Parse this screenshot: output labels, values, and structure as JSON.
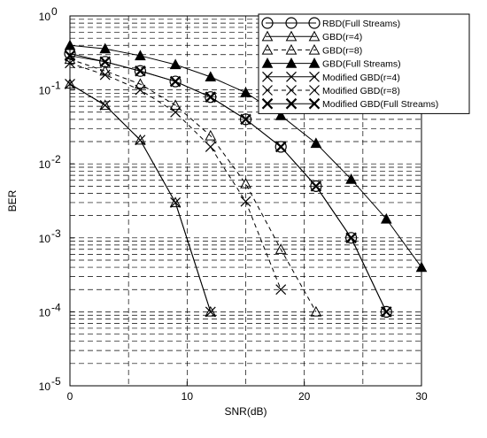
{
  "chart_data": {
    "type": "line",
    "title": "",
    "xlabel": "SNR(dB)",
    "ylabel": "BER",
    "xlim": [
      0,
      30
    ],
    "ylim": [
      1e-05,
      1
    ],
    "y_scale": "log",
    "grid": true,
    "legend_position": "top-right",
    "x_ticks": [
      0,
      10,
      20,
      30
    ],
    "x_tick_labels": [
      "0",
      "10",
      "20",
      "30"
    ],
    "y_ticks": [
      1e-05,
      0.0001,
      0.001,
      0.01,
      0.1,
      1
    ],
    "y_tick_labels": [
      {
        "base": "10",
        "exp": "-5"
      },
      {
        "base": "10",
        "exp": "-4"
      },
      {
        "base": "10",
        "exp": "-3"
      },
      {
        "base": "10",
        "exp": "-2"
      },
      {
        "base": "10",
        "exp": "-1"
      },
      {
        "base": "10",
        "exp": "0"
      }
    ],
    "series": [
      {
        "name": "RBD(Full Streams)",
        "marker": "circle",
        "line": "solid",
        "x": [
          0,
          3,
          6,
          9,
          12,
          15,
          18,
          21,
          24,
          27
        ],
        "y": [
          0.31,
          0.24,
          0.18,
          0.13,
          0.08,
          0.04,
          0.017,
          0.005,
          0.001,
          0.0001
        ]
      },
      {
        "name": "GBD(r=4)",
        "marker": "triangle-open",
        "line": "solid",
        "x": [
          0,
          3,
          6,
          9,
          12
        ],
        "y": [
          0.12,
          0.062,
          0.021,
          0.003,
          0.0001
        ]
      },
      {
        "name": "GBD(r=8)",
        "marker": "triangle-open",
        "line": "dashed",
        "x": [
          0,
          3,
          6,
          9,
          12,
          15,
          18,
          21
        ],
        "y": [
          0.26,
          0.18,
          0.12,
          0.062,
          0.024,
          0.0054,
          0.0007,
          0.0001
        ]
      },
      {
        "name": "GBD(Full Streams)",
        "marker": "triangle-filled",
        "line": "solid",
        "x": [
          0,
          3,
          6,
          9,
          12,
          15,
          18,
          21,
          24,
          27,
          30
        ],
        "y": [
          0.4,
          0.36,
          0.29,
          0.22,
          0.15,
          0.092,
          0.045,
          0.019,
          0.0062,
          0.0018,
          0.0004
        ]
      },
      {
        "name": "Modified GBD(r=4)",
        "marker": "x",
        "line": "solid",
        "x": [
          0,
          3,
          6,
          9,
          12
        ],
        "y": [
          0.12,
          0.062,
          0.021,
          0.003,
          0.0001
        ]
      },
      {
        "name": "Modified GBD(r=8)",
        "marker": "x",
        "line": "dashed",
        "x": [
          0,
          3,
          6,
          9,
          12,
          15,
          18
        ],
        "y": [
          0.23,
          0.16,
          0.1,
          0.05,
          0.017,
          0.0031,
          0.0002
        ]
      },
      {
        "name": "Modified GBD(Full Streams)",
        "marker": "x-bold",
        "line": "solid",
        "x": [
          0,
          3,
          6,
          9,
          12,
          15,
          18,
          21,
          24,
          27
        ],
        "y": [
          0.29,
          0.24,
          0.18,
          0.13,
          0.08,
          0.04,
          0.017,
          0.005,
          0.001,
          0.0001
        ]
      }
    ]
  }
}
